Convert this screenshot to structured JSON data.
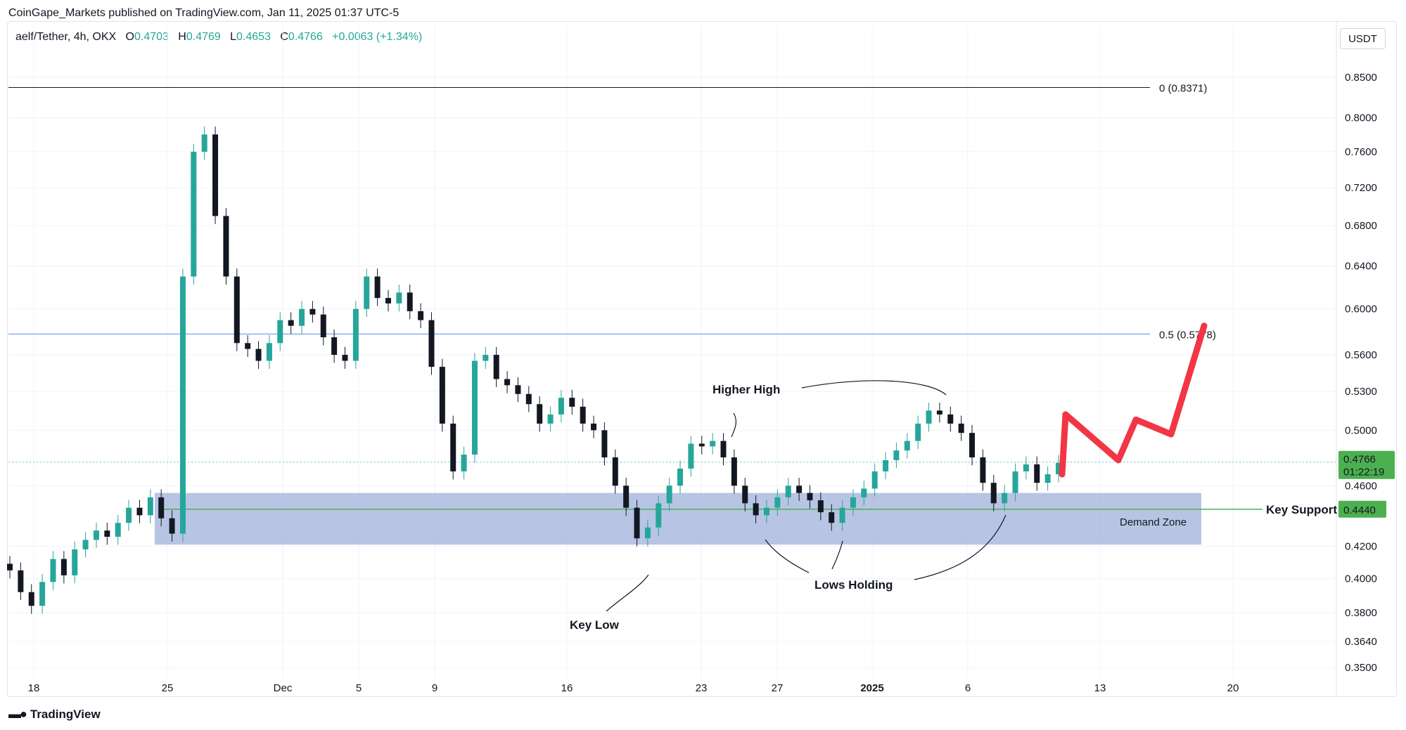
{
  "header": {
    "publisher": "CoinGape_Markets published on TradingView.com, Jan 11, 2025 01:37 UTC-5"
  },
  "legend": {
    "symbol": "aelf/Tether, 4h, OKX",
    "o_label": "O",
    "o": "0.4703",
    "h_label": "H",
    "h": "0.4769",
    "l_label": "L",
    "l": "0.4653",
    "c_label": "C",
    "c": "0.4766",
    "change": "+0.0063 (+1.34%)"
  },
  "currency_button": "USDT",
  "footer": {
    "logo_text": "TradingView"
  },
  "colors": {
    "up": "#26a69a",
    "down": "#131722",
    "fib": "#5b8def",
    "support": "#4caf50",
    "zone": "#8c9fd4",
    "forecast": "#f23645",
    "price_badge": "#4caf50"
  },
  "chart_data": {
    "type": "candlestick",
    "x_ticks": [
      "18",
      "25",
      "Dec",
      "5",
      "9",
      "16",
      "23",
      "27",
      "2025",
      "6",
      "13",
      "20"
    ],
    "y_ticks": [
      "0.8500",
      "0.8000",
      "0.7600",
      "0.7200",
      "0.6800",
      "0.6400",
      "0.6000",
      "0.5600",
      "0.5300",
      "0.5000",
      "0.4600",
      "0.4200",
      "0.4000",
      "0.3800",
      "0.3640",
      "0.3500"
    ],
    "y_scale": "log",
    "ylim": [
      0.345,
      0.865
    ],
    "last_price": {
      "value": "0.4766",
      "countdown": "01:22:19"
    },
    "key_support": {
      "label": "Key Support",
      "value": "0.4440"
    },
    "fib_levels": [
      {
        "label": "0 (0.8371)",
        "value": 0.8371
      },
      {
        "label": "0.5 (0.5778)",
        "value": 0.5778
      }
    ],
    "demand_zone": {
      "label": "Demand Zone",
      "low": 0.421,
      "high": 0.455
    },
    "annotations": {
      "higher_high": "Higher High",
      "key_low": "Key Low",
      "lows_holding": "Lows Holding"
    },
    "forecast_path": [
      0.468,
      0.512,
      0.478,
      0.508,
      0.497,
      0.585
    ],
    "price_path": [
      0.405,
      0.392,
      0.384,
      0.398,
      0.412,
      0.402,
      0.418,
      0.424,
      0.43,
      0.426,
      0.435,
      0.445,
      0.44,
      0.452,
      0.438,
      0.428,
      0.63,
      0.76,
      0.78,
      0.69,
      0.63,
      0.57,
      0.565,
      0.555,
      0.57,
      0.59,
      0.585,
      0.6,
      0.595,
      0.575,
      0.56,
      0.555,
      0.6,
      0.63,
      0.61,
      0.605,
      0.615,
      0.598,
      0.59,
      0.55,
      0.505,
      0.47,
      0.482,
      0.555,
      0.56,
      0.54,
      0.535,
      0.528,
      0.52,
      0.505,
      0.512,
      0.525,
      0.518,
      0.505,
      0.5,
      0.48,
      0.46,
      0.445,
      0.425,
      0.432,
      0.448,
      0.46,
      0.472,
      0.49,
      0.488,
      0.492,
      0.48,
      0.46,
      0.448,
      0.44,
      0.445,
      0.452,
      0.46,
      0.455,
      0.45,
      0.442,
      0.435,
      0.445,
      0.452,
      0.458,
      0.47,
      0.478,
      0.485,
      0.492,
      0.505,
      0.515,
      0.512,
      0.505,
      0.498,
      0.48,
      0.462,
      0.448,
      0.455,
      0.47,
      0.475,
      0.462,
      0.468,
      0.476
    ]
  }
}
